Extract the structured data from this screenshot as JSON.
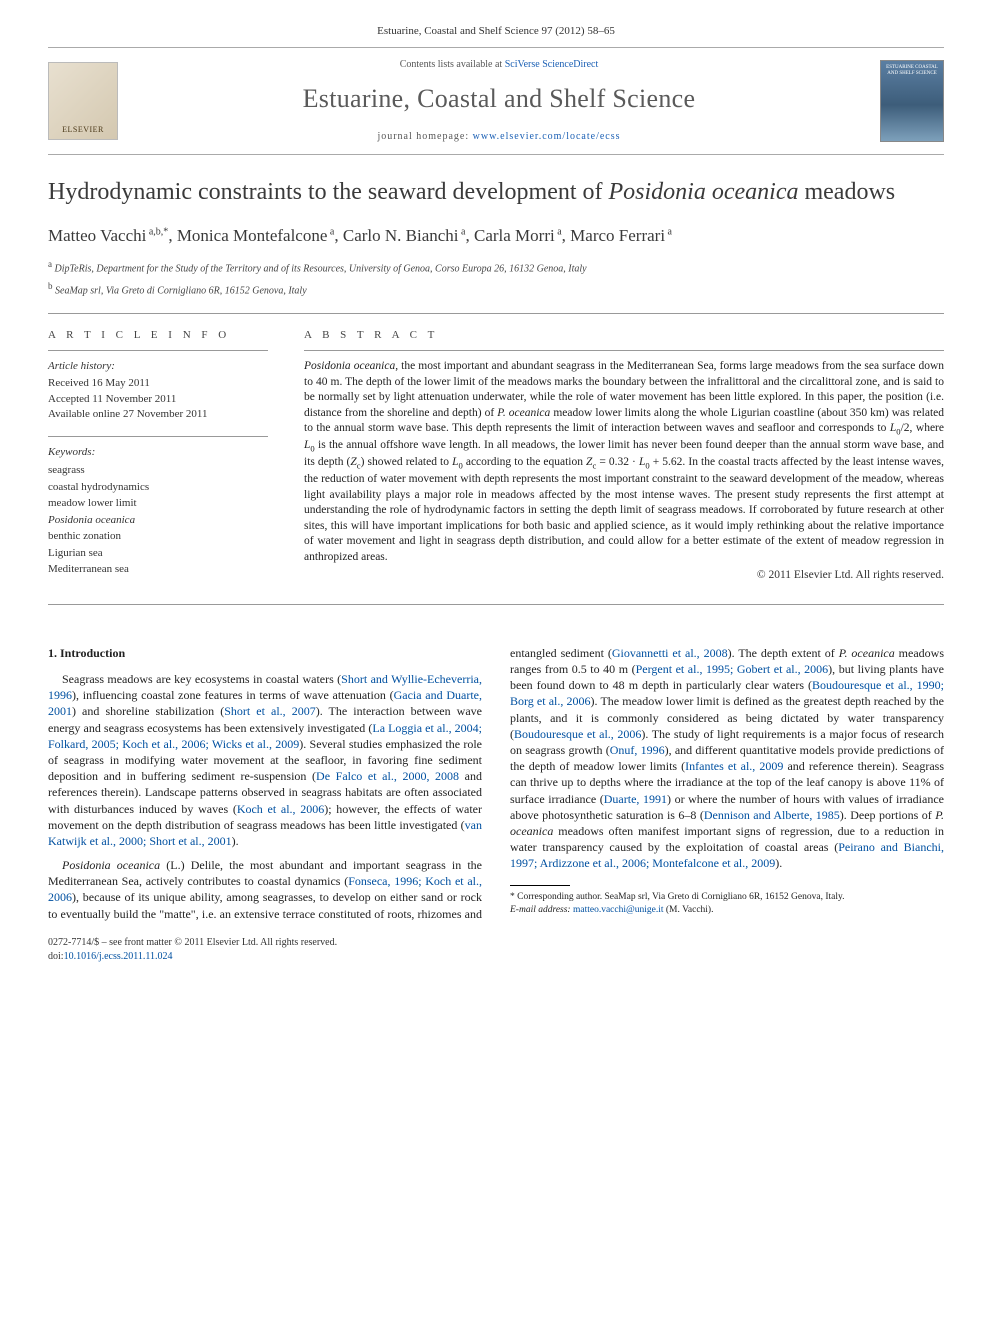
{
  "header": {
    "citation": "Estuarine, Coastal and Shelf Science 97 (2012) 58–65",
    "contents_prefix": "Contents lists available at ",
    "contents_link": "SciVerse ScienceDirect",
    "journal_name": "Estuarine, Coastal and Shelf Science",
    "homepage_prefix": "journal homepage: ",
    "homepage_link": "www.elsevier.com/locate/ecss",
    "elsevier_label": "ELSEVIER",
    "cover_text": "ESTUARINE COASTAL AND SHELF SCIENCE"
  },
  "title": {
    "pre": "Hydrodynamic constraints to the seaward development of ",
    "italic": "Posidonia oceanica",
    "post": " meadows"
  },
  "authors_html": "Matteo Vacchi<sup> a,b,*</sup>, Monica Montefalcone<sup> a</sup>, Carlo N. Bianchi<sup> a</sup>, Carla Morri<sup> a</sup>, Marco Ferrari<sup> a</sup>",
  "affiliations": [
    "<sup>a</sup> DipTeRis, Department for the Study of the Territory and of its Resources, University of Genoa, Corso Europa 26, 16132 Genoa, Italy",
    "<sup>b</sup> SeaMap srl, Via Greto di Cornigliano 6R, 16152 Genova, Italy"
  ],
  "article_info": {
    "heading": "A R T I C L E   I N F O",
    "history_label": "Article history:",
    "history": [
      "Received 16 May 2011",
      "Accepted 11 November 2011",
      "Available online 27 November 2011"
    ],
    "keywords_label": "Keywords:",
    "keywords": [
      "seagrass",
      "coastal hydrodynamics",
      "meadow lower limit",
      "Posidonia oceanica",
      "benthic zonation",
      "Ligurian sea",
      "Mediterranean sea"
    ]
  },
  "abstract": {
    "heading": "A B S T R A C T",
    "text": "<span class=\"italic\">Posidonia oceanica</span>, the most important and abundant seagrass in the Mediterranean Sea, forms large meadows from the sea surface down to 40 m. The depth of the lower limit of the meadows marks the boundary between the infralittoral and the circalittoral zone, and is said to be normally set by light attenuation underwater, while the role of water movement has been little explored. In this paper, the position (i.e. distance from the shoreline and depth) of <span class=\"italic\">P. oceanica</span> meadow lower limits along the whole Ligurian coastline (about 350 km) was related to the annual storm wave base. This depth represents the limit of interaction between waves and seafloor and corresponds to <span class=\"italic\">L</span><sub>0</sub>/2, where <span class=\"italic\">L</span><sub>0</sub> is the annual offshore wave length. In all meadows, the lower limit has never been found deeper than the annual storm wave base, and its depth (<span class=\"italic\">Z</span><sub>c</sub>) showed related to <span class=\"italic\">L</span><sub>0</sub> according to the equation <span class=\"italic\">Z</span><sub>c</sub> = 0.32 · <span class=\"italic\">L</span><sub>0</sub> + 5.62. In the coastal tracts affected by the least intense waves, the reduction of water movement with depth represents the most important constraint to the seaward development of the meadow, whereas light availability plays a major role in meadows affected by the most intense waves. The present study represents the first attempt at understanding the role of hydrodynamic factors in setting the depth limit of seagrass meadows. If corroborated by future research at other sites, this will have important implications for both basic and applied science, as it would imply rethinking about the relative importance of water movement and light in seagrass depth distribution, and could allow for a better estimate of the extent of meadow regression in anthropized areas.",
    "copyright": "© 2011 Elsevier Ltd. All rights reserved."
  },
  "body": {
    "heading": "1.  Introduction",
    "p1": "Seagrass meadows are key ecosystems in coastal waters (<a href=\"#\">Short and Wyllie-Echeverria, 1996</a>), influencing coastal zone features in terms of wave attenuation (<a href=\"#\">Gacia and Duarte, 2001</a>) and shoreline stabilization (<a href=\"#\">Short et al., 2007</a>). The interaction between wave energy and seagrass ecosystems has been extensively investigated (<a href=\"#\">La Loggia et al., 2004; Folkard, 2005; Koch et al., 2006; Wicks et al., 2009</a>). Several studies emphasized the role of seagrass in modifying water movement at the seafloor, in favoring fine sediment deposition and in buffering sediment re-suspension (<a href=\"#\">De Falco et al., 2000, 2008</a> and references therein). Landscape patterns observed in seagrass habitats are often associated with disturbances induced by waves (<a href=\"#\">Koch et al., 2006</a>); however, the effects of water movement on the depth distribution of seagrass meadows has been little investigated (<a href=\"#\">van Katwijk et al., 2000; Short et al., 2001</a>).",
    "p2": "<span class=\"italic\">Posidonia oceanica</span> (L.) Delile, the most abundant and important seagrass in the Mediterranean Sea, actively contributes to coastal dynamics (<a href=\"#\">Fonseca, 1996; Koch et al., 2006</a>), because of its unique ability, among seagrasses, to develop on either sand or rock to eventually build the \"matte\", i.e. an extensive terrace constituted of roots, rhizomes and entangled sediment (<a href=\"#\">Giovannetti et al., 2008</a>). The depth extent of <span class=\"italic\">P. oceanica</span> meadows ranges from 0.5 to 40 m (<a href=\"#\">Pergent et al., 1995; Gobert et al., 2006</a>), but living plants have been found down to 48 m depth in particularly clear waters (<a href=\"#\">Boudouresque et al., 1990; Borg et al., 2006</a>). The meadow lower limit is defined as the greatest depth reached by the plants, and it is commonly considered as being dictated by water transparency (<a href=\"#\">Boudouresque et al., 2006</a>). The study of light requirements is a major focus of research on seagrass growth (<a href=\"#\">Onuf, 1996</a>), and different quantitative models provide predictions of the depth of meadow lower limits (<a href=\"#\">Infantes et al., 2009</a> and reference therein). Seagrass can thrive up to depths where the irradiance at the top of the leaf canopy is above 11% of surface irradiance (<a href=\"#\">Duarte, 1991</a>) or where the number of hours with values of irradiance above photosynthetic saturation is 6–8 (<a href=\"#\">Dennison and Alberte, 1985</a>). Deep portions of <span class=\"italic\">P. oceanica</span> meadows often manifest important signs of regression, due to a reduction in water transparency caused by the exploitation of coastal areas (<a href=\"#\">Peirano and Bianchi, 1997; Ardizzone et al., 2006; Montefalcone et al., 2009</a>)."
  },
  "footnote": {
    "text": "* Corresponding author. SeaMap srl, Via Greto di Cornigliano 6R, 16152 Genova, Italy.",
    "email_label": "E-mail address:",
    "email": "matteo.vacchi@unige.it",
    "email_suffix": " (M. Vacchi)."
  },
  "footer": {
    "line1": "0272-7714/$ – see front matter © 2011 Elsevier Ltd. All rights reserved.",
    "doi_prefix": "doi:",
    "doi": "10.1016/j.ecss.2011.11.024"
  },
  "colors": {
    "link": "#0050a0",
    "text": "#222222",
    "heading": "#3a3a3a",
    "rule": "#999999"
  }
}
